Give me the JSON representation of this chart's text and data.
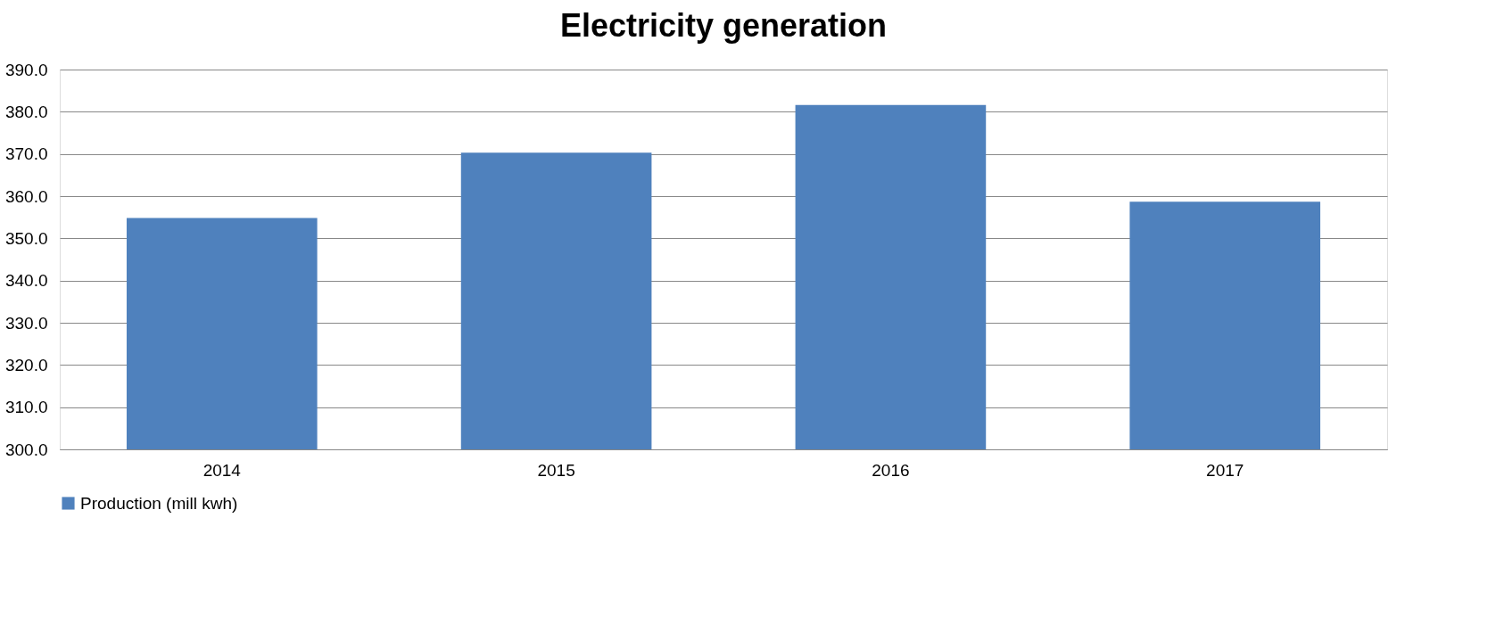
{
  "chart_data": {
    "type": "bar",
    "title": "Electricity generation",
    "categories": [
      "2014",
      "2015",
      "2016",
      "2017"
    ],
    "series": [
      {
        "name": "Production (mill kwh)",
        "color": "#4f81bd",
        "values": [
          354.8,
          370.3,
          381.6,
          358.7
        ]
      }
    ],
    "ylim": [
      300,
      390
    ],
    "yticks": [
      {
        "value": 300,
        "label": "300.0"
      },
      {
        "value": 310,
        "label": "310.0"
      },
      {
        "value": 320,
        "label": "320.0"
      },
      {
        "value": 330,
        "label": "330.0"
      },
      {
        "value": 340,
        "label": "340.0"
      },
      {
        "value": 350,
        "label": "350.0"
      },
      {
        "value": 360,
        "label": "360.0"
      },
      {
        "value": 370,
        "label": "370.0"
      },
      {
        "value": 380,
        "label": "380.0"
      },
      {
        "value": 390,
        "label": "390.0"
      }
    ],
    "grid": "y",
    "legend": "bottom"
  }
}
